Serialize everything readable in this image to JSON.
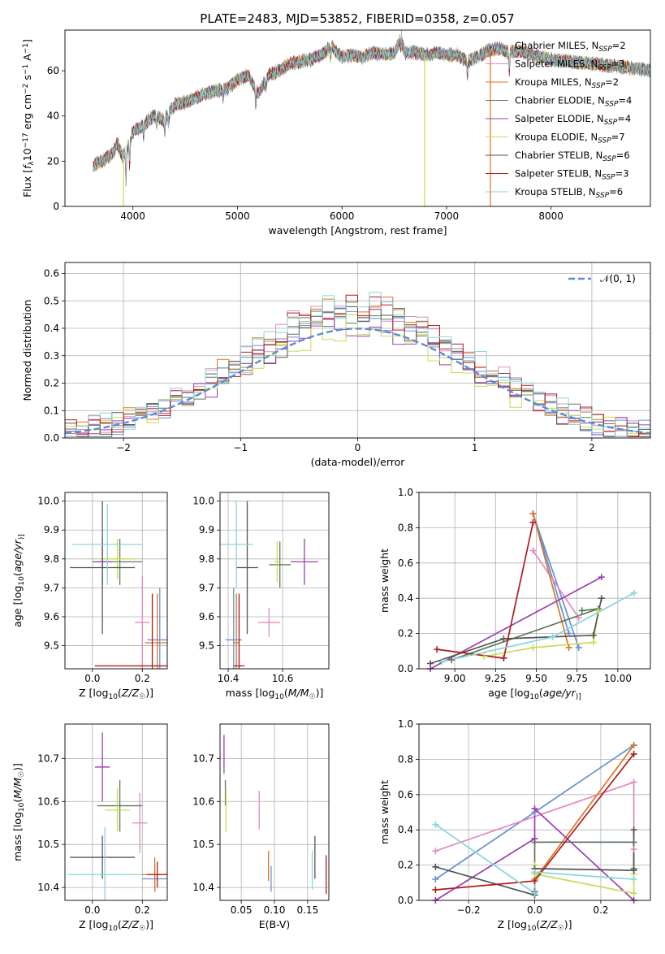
{
  "chart_data": [
    {
      "id": "spectrum",
      "type": "line",
      "title": "PLATE=2483, MJD=53852, FIBERID=0358, z=0.057",
      "xlabel": "wavelength [Angstrom, rest frame]",
      "ylabel_parts": [
        "Flux [",
        "f",
        "λ",
        "10",
        "−17",
        " erg cm",
        "−2",
        " s",
        "−1",
        " A",
        "−1",
        "]"
      ],
      "xlim": [
        3350,
        8950
      ],
      "ylim": [
        0,
        78
      ],
      "xticks": [
        4000,
        5000,
        6000,
        7000,
        8000
      ],
      "yticks": [
        0,
        20,
        40,
        60
      ],
      "grid": false,
      "legend_position": "right",
      "spectrum_range": [
        3620,
        9200
      ],
      "anchors": [
        [
          3620,
          18
        ],
        [
          3700,
          20
        ],
        [
          3800,
          23
        ],
        [
          3850,
          28
        ],
        [
          3900,
          22
        ],
        [
          3950,
          26
        ],
        [
          4000,
          33
        ],
        [
          4100,
          36
        ],
        [
          4200,
          40
        ],
        [
          4300,
          38
        ],
        [
          4400,
          45
        ],
        [
          4500,
          46
        ],
        [
          4600,
          48
        ],
        [
          4700,
          50
        ],
        [
          4800,
          51
        ],
        [
          4900,
          52
        ],
        [
          5000,
          56
        ],
        [
          5100,
          58
        ],
        [
          5150,
          54
        ],
        [
          5200,
          50
        ],
        [
          5300,
          58
        ],
        [
          5400,
          60
        ],
        [
          5500,
          63
        ],
        [
          5600,
          64
        ],
        [
          5700,
          65
        ],
        [
          5800,
          67
        ],
        [
          5900,
          71
        ],
        [
          5950,
          68
        ],
        [
          6000,
          66
        ],
        [
          6100,
          67
        ],
        [
          6200,
          66
        ],
        [
          6300,
          68
        ],
        [
          6400,
          67
        ],
        [
          6500,
          68
        ],
        [
          6563,
          74
        ],
        [
          6600,
          68
        ],
        [
          6700,
          68
        ],
        [
          6800,
          67
        ],
        [
          6900,
          68
        ],
        [
          7000,
          67
        ],
        [
          7100,
          67
        ],
        [
          7200,
          64
        ],
        [
          7300,
          66
        ],
        [
          7400,
          69
        ],
        [
          7500,
          70
        ],
        [
          7600,
          68
        ],
        [
          7700,
          69
        ],
        [
          7800,
          67
        ],
        [
          7900,
          66
        ],
        [
          8000,
          65
        ],
        [
          8200,
          64
        ],
        [
          8400,
          63
        ],
        [
          8600,
          62
        ],
        [
          8800,
          61
        ],
        [
          9000,
          60
        ],
        [
          9200,
          59
        ]
      ],
      "series": [
        {
          "name_parts": [
            "Chabrier MILES, N",
            "SSP",
            "=2"
          ],
          "color": "#6b8fd4"
        },
        {
          "name_parts": [
            "Salpeter MILES, N",
            "SSP",
            "=3"
          ],
          "color": "#e38ac0"
        },
        {
          "name_parts": [
            "Kroupa MILES, N",
            "SSP",
            "=2"
          ],
          "color": "#d8762a"
        },
        {
          "name_parts": [
            "Chabrier ELODIE, N",
            "SSP",
            "=4"
          ],
          "color": "#5c7a5c"
        },
        {
          "name_parts": [
            "Salpeter ELODIE, N",
            "SSP",
            "=4"
          ],
          "color": "#9a3fb0"
        },
        {
          "name_parts": [
            "Kroupa ELODIE, N",
            "SSP",
            "=7"
          ],
          "color": "#c9dc52"
        },
        {
          "name_parts": [
            "Chabrier STELIB, N",
            "SSP",
            "=6"
          ],
          "color": "#555555"
        },
        {
          "name_parts": [
            "Salpeter STELIB, N",
            "SSP",
            "=3"
          ],
          "color": "#b01c1c"
        },
        {
          "name_parts": [
            "Kroupa STELIB, N",
            "SSP",
            "=6"
          ],
          "color": "#85d6dc"
        }
      ]
    },
    {
      "id": "residuals",
      "type": "histogram",
      "xlabel": "(data-model)/error",
      "ylabel": "Normed distribution",
      "xlim": [
        -2.5,
        2.5
      ],
      "ylim": [
        0,
        0.64
      ],
      "xticks": [
        -2,
        -1,
        0,
        1,
        2
      ],
      "yticks": [
        0.0,
        0.1,
        0.2,
        0.3,
        0.4,
        0.5,
        0.6
      ],
      "grid": true,
      "legend_position": "top-right",
      "legend_label": "𝒩(0, 1)",
      "reference_color": "#5b8bd6"
    },
    {
      "id": "age-vs-Z",
      "type": "errorbar",
      "xlabel_parts": [
        "Z [log",
        "10",
        "(",
        "Z/Z",
        "☉",
        ")]"
      ],
      "ylabel_parts": [
        "age  [log",
        "10",
        "(",
        "age/yr",
        ")]"
      ],
      "xlim": [
        -0.11,
        0.3
      ],
      "ylim": [
        9.42,
        10.03
      ],
      "xticks": [
        0.0,
        0.2
      ],
      "yticks": [
        9.5,
        9.6,
        9.7,
        9.8,
        9.9,
        10.0
      ],
      "grid": true,
      "points": [
        {
          "x": 0.27,
          "y": 9.52,
          "xerr": 0.05,
          "yerr": 0.18,
          "color": "#6b8fd4"
        },
        {
          "x": 0.2,
          "y": 9.58,
          "xerr": 0.03,
          "yerr": 0.16,
          "color": "#e38ac0"
        },
        {
          "x": 0.26,
          "y": 9.51,
          "xerr": 0.05,
          "yerr": 0.17,
          "color": "#d8762a"
        },
        {
          "x": 0.11,
          "y": 9.79,
          "xerr": 0.09,
          "yerr": 0.08,
          "color": "#5c7a5c"
        },
        {
          "x": 0.04,
          "y": 9.79,
          "xerr": 0.04,
          "yerr": 0.08,
          "color": "#9a3fb0"
        },
        {
          "x": 0.1,
          "y": 9.8,
          "xerr": 0.07,
          "yerr": 0.07,
          "color": "#c9dc52"
        },
        {
          "x": 0.04,
          "y": 9.77,
          "xerr": 0.13,
          "yerr": 0.23,
          "color": "#555555"
        },
        {
          "x": 0.24,
          "y": 9.43,
          "xerr": 0.23,
          "yerr": 0.25,
          "color": "#b01c1c"
        },
        {
          "x": 0.06,
          "y": 9.85,
          "xerr": 0.14,
          "yerr": 0.14,
          "color": "#85d6dc"
        }
      ]
    },
    {
      "id": "age-vs-mass",
      "type": "errorbar",
      "xlabel_parts": [
        "mass [log",
        "10",
        "(",
        "M/M",
        "☉",
        ")]"
      ],
      "xlim": [
        10.37,
        10.77
      ],
      "ylim": [
        9.42,
        10.03
      ],
      "xticks": [
        10.4,
        10.6
      ],
      "yticks": [
        9.5,
        9.6,
        9.7,
        9.8,
        9.9,
        10.0
      ],
      "grid": true,
      "points": [
        {
          "x": 10.42,
          "y": 9.52,
          "xerr": 0.03,
          "yerr": 0.18,
          "color": "#6b8fd4"
        },
        {
          "x": 10.55,
          "y": 9.58,
          "xerr": 0.04,
          "yerr": 0.05,
          "color": "#e38ac0"
        },
        {
          "x": 10.43,
          "y": 9.51,
          "xerr": 0.01,
          "yerr": 0.17,
          "color": "#d8762a"
        },
        {
          "x": 10.59,
          "y": 9.78,
          "xerr": 0.04,
          "yerr": 0.08,
          "color": "#5c7a5c"
        },
        {
          "x": 10.68,
          "y": 9.79,
          "xerr": 0.05,
          "yerr": 0.08,
          "color": "#9a3fb0"
        },
        {
          "x": 10.58,
          "y": 9.79,
          "xerr": 0.01,
          "yerr": 0.07,
          "color": "#c9dc52"
        },
        {
          "x": 10.47,
          "y": 9.77,
          "xerr": 0.04,
          "yerr": 0.23,
          "color": "#555555"
        },
        {
          "x": 10.44,
          "y": 9.43,
          "xerr": 0.02,
          "yerr": 0.25,
          "color": "#b01c1c"
        },
        {
          "x": 10.43,
          "y": 9.85,
          "xerr": 0.06,
          "yerr": 0.15,
          "color": "#85d6dc"
        }
      ]
    },
    {
      "id": "weight-vs-age",
      "type": "line",
      "xlabel_parts": [
        "age  [log",
        "10",
        "(",
        "age/yr",
        ")]"
      ],
      "ylabel": "mass weight",
      "xlim": [
        8.78,
        10.2
      ],
      "ylim": [
        0,
        1
      ],
      "xticks": [
        9.0,
        9.25,
        9.5,
        9.75,
        10.0
      ],
      "xtick_labels": [
        "9.00",
        "9.25",
        "9.50",
        "9.75",
        "10.00"
      ],
      "yticks": [
        0.0,
        0.2,
        0.4,
        0.6,
        0.8,
        1.0
      ],
      "grid": true,
      "series": [
        {
          "color": "#6b8fd4",
          "points": [
            [
              9.76,
              0.12
            ],
            [
              9.48,
              0.88
            ],
            [
              9.7,
              0.2
            ]
          ]
        },
        {
          "color": "#e38ac0",
          "points": [
            [
              9.48,
              0.67
            ],
            [
              9.76,
              0.29
            ]
          ]
        },
        {
          "color": "#d8762a",
          "points": [
            [
              9.48,
              0.88
            ],
            [
              9.7,
              0.12
            ]
          ]
        },
        {
          "color": "#5c7a5c",
          "points": [
            [
              9.78,
              0.33
            ],
            [
              9.88,
              0.34
            ],
            [
              8.98,
              0.05
            ]
          ]
        },
        {
          "color": "#9a3fb0",
          "points": [
            [
              9.9,
              0.52
            ],
            [
              8.85,
              0.0
            ]
          ]
        },
        {
          "color": "#c9dc52",
          "points": [
            [
              9.18,
              0.07
            ],
            [
              9.48,
              0.12
            ],
            [
              9.85,
              0.15
            ],
            [
              9.88,
              0.33
            ]
          ]
        },
        {
          "color": "#555555",
          "points": [
            [
              8.85,
              0.03
            ],
            [
              9.3,
              0.17
            ],
            [
              9.85,
              0.19
            ],
            [
              9.9,
              0.4
            ]
          ]
        },
        {
          "color": "#b01c1c",
          "points": [
            [
              8.89,
              0.11
            ],
            [
              9.3,
              0.06
            ],
            [
              9.48,
              0.83
            ]
          ]
        },
        {
          "color": "#85d6dc",
          "points": [
            [
              8.92,
              0.04
            ],
            [
              9.6,
              0.18
            ],
            [
              10.1,
              0.43
            ]
          ]
        }
      ]
    },
    {
      "id": "mass-vs-Z",
      "type": "errorbar",
      "xlabel_parts": [
        "Z [log",
        "10",
        "(",
        "Z/Z",
        "☉",
        ")]"
      ],
      "ylabel_parts": [
        "mass [log",
        "10",
        "(",
        "M/M",
        "☉",
        ")]"
      ],
      "xlim": [
        -0.11,
        0.3
      ],
      "ylim": [
        10.37,
        10.78
      ],
      "xticks": [
        0.0,
        0.2
      ],
      "yticks": [
        10.4,
        10.5,
        10.6,
        10.7
      ],
      "grid": true,
      "points": [
        {
          "x": 0.25,
          "y": 10.42,
          "xerr": 0.05,
          "yerr": 0.03,
          "color": "#6b8fd4"
        },
        {
          "x": 0.19,
          "y": 10.55,
          "xerr": 0.03,
          "yerr": 0.07,
          "color": "#e38ac0"
        },
        {
          "x": 0.25,
          "y": 10.43,
          "xerr": 0.05,
          "yerr": 0.04,
          "color": "#d8762a"
        },
        {
          "x": 0.11,
          "y": 10.59,
          "xerr": 0.09,
          "yerr": 0.06,
          "color": "#5c7a5c"
        },
        {
          "x": 0.04,
          "y": 10.68,
          "xerr": 0.03,
          "yerr": 0.08,
          "color": "#9a3fb0"
        },
        {
          "x": 0.1,
          "y": 10.58,
          "xerr": 0.05,
          "yerr": 0.05,
          "color": "#c9dc52"
        },
        {
          "x": 0.04,
          "y": 10.47,
          "xerr": 0.13,
          "yerr": 0.05,
          "color": "#555555"
        },
        {
          "x": 0.26,
          "y": 10.43,
          "xerr": 0.04,
          "yerr": 0.03,
          "color": "#b01c1c"
        },
        {
          "x": 0.05,
          "y": 10.43,
          "xerr": 0.15,
          "yerr": 0.11,
          "color": "#85d6dc"
        }
      ]
    },
    {
      "id": "mass-vs-ebv",
      "type": "errorbar",
      "xlabel": "E(B-V)",
      "xlim": [
        0.018,
        0.182
      ],
      "ylim": [
        10.37,
        10.78
      ],
      "xticks": [
        0.05,
        0.1,
        0.15
      ],
      "xtick_labels": [
        "0.05",
        "0.10",
        "0.15"
      ],
      "yticks": [
        10.4,
        10.5,
        10.6,
        10.7
      ],
      "grid": true,
      "points": [
        {
          "x": 0.095,
          "y": 10.42,
          "xerr": 0,
          "yerr": 0.03,
          "color": "#6b8fd4"
        },
        {
          "x": 0.077,
          "y": 10.58,
          "xerr": 0,
          "yerr": 0.045,
          "color": "#e38ac0"
        },
        {
          "x": 0.091,
          "y": 10.45,
          "xerr": 0,
          "yerr": 0.035,
          "color": "#d8762a"
        },
        {
          "x": 0.026,
          "y": 10.62,
          "xerr": 0,
          "yerr": 0.03,
          "color": "#5c7a5c"
        },
        {
          "x": 0.024,
          "y": 10.71,
          "xerr": 0,
          "yerr": 0.045,
          "color": "#9a3fb0"
        },
        {
          "x": 0.027,
          "y": 10.58,
          "xerr": 0,
          "yerr": 0.05,
          "color": "#c9dc52"
        },
        {
          "x": 0.161,
          "y": 10.47,
          "xerr": 0,
          "yerr": 0.05,
          "color": "#555555"
        },
        {
          "x": 0.178,
          "y": 10.43,
          "xerr": 0,
          "yerr": 0.045,
          "color": "#b01c1c"
        },
        {
          "x": 0.157,
          "y": 10.44,
          "xerr": 0,
          "yerr": 0.045,
          "color": "#85d6dc"
        }
      ]
    },
    {
      "id": "weight-vs-Z",
      "type": "line",
      "xlabel_parts": [
        "Z [log",
        "10",
        "(",
        "Z/Z",
        "☉",
        ")]"
      ],
      "ylabel": "mass weight",
      "xlim": [
        -0.35,
        0.35
      ],
      "ylim": [
        0,
        1
      ],
      "xticks": [
        -0.2,
        0.0,
        0.2
      ],
      "xtick_labels": [
        "−0.2",
        "0.0",
        "0.2"
      ],
      "yticks": [
        0.0,
        0.2,
        0.4,
        0.6,
        0.8,
        1.0
      ],
      "grid": true,
      "series": [
        {
          "color": "#6b8fd4",
          "points": [
            [
              -0.3,
              0.12
            ],
            [
              0.0,
              0.5
            ],
            [
              0.3,
              0.88
            ]
          ]
        },
        {
          "color": "#e38ac0",
          "points": [
            [
              -0.3,
              0.28
            ],
            [
              0.3,
              0.67
            ],
            [
              0.3,
              0.29
            ]
          ]
        },
        {
          "color": "#d8762a",
          "points": [
            [
              0.0,
              0.12
            ],
            [
              0.3,
              0.88
            ]
          ]
        },
        {
          "color": "#5c7a5c",
          "points": [
            [
              0.0,
              0.05
            ],
            [
              0.0,
              0.33
            ],
            [
              0.3,
              0.33
            ],
            [
              0.3,
              0.18
            ]
          ]
        },
        {
          "color": "#9a3fb0",
          "points": [
            [
              -0.3,
              0.0
            ],
            [
              0.0,
              0.35
            ],
            [
              0.0,
              0.52
            ],
            [
              0.3,
              0.0
            ]
          ]
        },
        {
          "color": "#c9dc52",
          "points": [
            [
              0.0,
              0.2
            ],
            [
              0.0,
              0.15
            ],
            [
              0.3,
              0.04
            ],
            [
              0.3,
              0.15
            ]
          ]
        },
        {
          "color": "#555555",
          "points": [
            [
              -0.3,
              0.19
            ],
            [
              0.0,
              0.03
            ],
            [
              0.0,
              0.18
            ],
            [
              0.3,
              0.17
            ],
            [
              0.3,
              0.4
            ]
          ]
        },
        {
          "color": "#b01c1c",
          "points": [
            [
              -0.3,
              0.06
            ],
            [
              0.0,
              0.11
            ],
            [
              0.3,
              0.83
            ]
          ]
        },
        {
          "color": "#85d6dc",
          "points": [
            [
              -0.3,
              0.43
            ],
            [
              0.0,
              0.04
            ],
            [
              0.0,
              0.16
            ],
            [
              0.3,
              0.12
            ]
          ]
        }
      ]
    }
  ]
}
